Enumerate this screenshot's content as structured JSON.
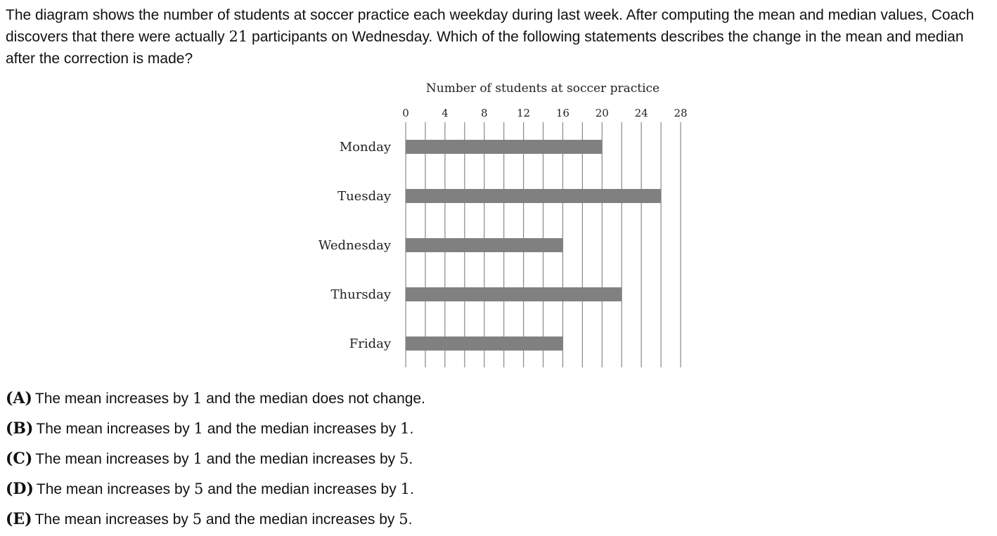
{
  "question": {
    "text_before": "The diagram shows the number of students at soccer practice each weekday during last week. After computing the mean and median values, Coach discovers that there were actually ",
    "highlight_value": "21",
    "text_after": " participants on Wednesday. Which of the following statements describes the change in the mean and median after the correction is made?"
  },
  "chart_data": {
    "type": "bar",
    "orientation": "horizontal",
    "title": "Number of students at soccer practice",
    "categories": [
      "Monday",
      "Tuesday",
      "Wednesday",
      "Thursday",
      "Friday"
    ],
    "values": [
      20,
      26,
      16,
      22,
      16
    ],
    "x_ticks": [
      0,
      4,
      8,
      12,
      16,
      20,
      24,
      28
    ],
    "xlim": [
      0,
      28
    ],
    "x_axis_position": "top",
    "grid": true,
    "grid_step": 2,
    "bar_color": "#808080"
  },
  "choices": [
    {
      "letter": "(A)",
      "p1": "The mean increases by ",
      "v1": "1",
      "p2": " and the median does not change.",
      "v2": "",
      "p3": ""
    },
    {
      "letter": "(B)",
      "p1": "The mean increases by ",
      "v1": "1",
      "p2": " and the median increases by ",
      "v2": "1",
      "p3": "."
    },
    {
      "letter": "(C)",
      "p1": "The mean increases by ",
      "v1": "1",
      "p2": " and the median increases by ",
      "v2": "5",
      "p3": "."
    },
    {
      "letter": "(D)",
      "p1": "The mean increases by ",
      "v1": "5",
      "p2": " and the median increases by ",
      "v2": "1",
      "p3": "."
    },
    {
      "letter": "(E)",
      "p1": "The mean increases by ",
      "v1": "5",
      "p2": " and the median increases by ",
      "v2": "5",
      "p3": "."
    }
  ]
}
